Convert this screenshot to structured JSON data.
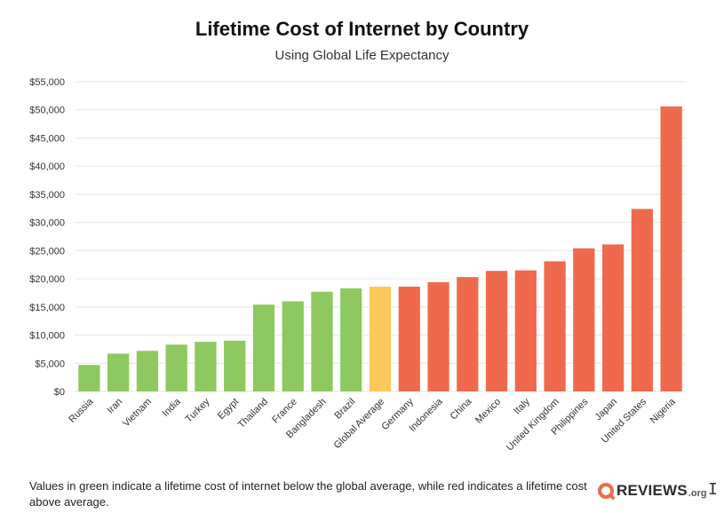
{
  "chart_data": {
    "type": "bar",
    "title": "Lifetime Cost of Internet by Country",
    "subtitle": "Using Global Life Expectancy",
    "xlabel": "",
    "ylabel": "",
    "ylim": [
      0,
      55000
    ],
    "yticks": [
      0,
      5000,
      10000,
      15000,
      20000,
      25000,
      30000,
      35000,
      40000,
      45000,
      50000,
      55000
    ],
    "ytick_labels": [
      "$0",
      "$5,000",
      "$10,000",
      "$15,000",
      "$20,000",
      "$25,000",
      "$30,000",
      "$35,000",
      "$40,000",
      "$45,000",
      "$50,000",
      "$55,000"
    ],
    "grid": true,
    "legend": false,
    "categories": [
      "Russia",
      "Iran",
      "Vietnam",
      "India",
      "Turkey",
      "Egypt",
      "Thailand",
      "France",
      "Bangladesh",
      "Brazil",
      "Global Average",
      "Germany",
      "Indonesia",
      "China",
      "Mexico",
      "Italy",
      "United Kingdom",
      "Philippines",
      "Japan",
      "United States",
      "Nigeria"
    ],
    "values": [
      4700,
      6700,
      7200,
      8300,
      8800,
      9000,
      15400,
      16000,
      17700,
      18300,
      18600,
      18600,
      19400,
      20300,
      21400,
      21500,
      23100,
      25400,
      26100,
      32400,
      50600
    ],
    "bar_colors": [
      "#8dc860",
      "#8dc860",
      "#8dc860",
      "#8dc860",
      "#8dc860",
      "#8dc860",
      "#8dc860",
      "#8dc860",
      "#8dc860",
      "#8dc860",
      "#fcc85c",
      "#ef6a4c",
      "#ef6a4c",
      "#ef6a4c",
      "#ef6a4c",
      "#ef6a4c",
      "#ef6a4c",
      "#ef6a4c",
      "#ef6a4c",
      "#ef6a4c",
      "#ef6a4c"
    ]
  },
  "caption": "Values in green indicate a lifetime cost of internet below the global average, while red indicates a lifetime cost above average.",
  "logo": {
    "text": "REVIEWS",
    "suffix": ".org",
    "icon": "magnifier-q-icon",
    "color": "#ef6a4c"
  },
  "colors": {
    "below_average": "#8dc860",
    "average": "#fcc85c",
    "above_average": "#ef6a4c",
    "grid": "#e6e6e6",
    "axis_text": "#333333"
  }
}
